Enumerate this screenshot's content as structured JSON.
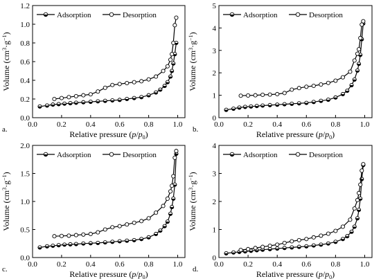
{
  "figure": {
    "xlabel_main": "Relative pressure (",
    "xlabel_p": "p",
    "xlabel_slash": "/",
    "xlabel_p0": "p",
    "xlabel_sub": "0",
    "xlabel_close": ")",
    "ylabel_main": "Volume (cm",
    "ylabel_sup3": "3",
    "ylabel_mid": "·g",
    "ylabel_supneg": "−1",
    "ylabel_close": ")"
  },
  "chart_data": [
    {
      "type": "line",
      "panel_label": "a.",
      "xlim": [
        0.0,
        1.05
      ],
      "ylim": [
        0.0,
        1.2
      ],
      "xticks": [
        0.0,
        0.2,
        0.4,
        0.6,
        0.8,
        1.0
      ],
      "xtick_labels": [
        "0.0",
        "0.2",
        "0.4",
        "0.6",
        "0.8",
        "1.0"
      ],
      "yticks": [
        0.0,
        0.2,
        0.4,
        0.6,
        0.8,
        1.0,
        1.2
      ],
      "ytick_labels": [
        "0.0",
        "0.2",
        "0.4",
        "0.6",
        "0.8",
        "1.0",
        "1.2"
      ],
      "legend_position": "top-left",
      "series": [
        {
          "name": "Adsorption",
          "marker": "half-filled-circle",
          "x": [
            0.05,
            0.1,
            0.14,
            0.18,
            0.22,
            0.26,
            0.3,
            0.35,
            0.4,
            0.45,
            0.5,
            0.55,
            0.6,
            0.65,
            0.7,
            0.75,
            0.8,
            0.85,
            0.88,
            0.91,
            0.93,
            0.95,
            0.96,
            0.97,
            0.98,
            0.99
          ],
          "y": [
            0.12,
            0.13,
            0.14,
            0.145,
            0.15,
            0.155,
            0.16,
            0.165,
            0.17,
            0.175,
            0.18,
            0.185,
            0.19,
            0.2,
            0.21,
            0.22,
            0.24,
            0.27,
            0.3,
            0.34,
            0.38,
            0.44,
            0.5,
            0.58,
            0.68,
            0.8
          ]
        },
        {
          "name": "Desorption",
          "marker": "open-circle",
          "x": [
            0.99,
            0.98,
            0.97,
            0.96,
            0.95,
            0.93,
            0.9,
            0.85,
            0.8,
            0.75,
            0.7,
            0.65,
            0.6,
            0.55,
            0.5,
            0.45,
            0.4,
            0.35,
            0.3,
            0.25,
            0.2,
            0.15
          ],
          "y": [
            1.07,
            0.99,
            0.8,
            0.68,
            0.62,
            0.55,
            0.5,
            0.44,
            0.41,
            0.39,
            0.38,
            0.37,
            0.36,
            0.35,
            0.32,
            0.28,
            0.25,
            0.24,
            0.23,
            0.22,
            0.21,
            0.2
          ]
        }
      ]
    },
    {
      "type": "line",
      "panel_label": "b.",
      "xlim": [
        0.0,
        1.05
      ],
      "ylim": [
        0,
        5
      ],
      "xticks": [
        0.0,
        0.2,
        0.4,
        0.6,
        0.8,
        1.0
      ],
      "xtick_labels": [
        "0.0",
        "0.2",
        "0.4",
        "0.6",
        "0.8",
        "1.0"
      ],
      "yticks": [
        0,
        1,
        2,
        3,
        4,
        5
      ],
      "ytick_labels": [
        "0",
        "1",
        "2",
        "3",
        "4",
        "5"
      ],
      "legend_position": "top-left",
      "series": [
        {
          "name": "Adsorption",
          "marker": "half-filled-circle",
          "x": [
            0.05,
            0.1,
            0.14,
            0.18,
            0.22,
            0.26,
            0.3,
            0.35,
            0.4,
            0.45,
            0.5,
            0.55,
            0.6,
            0.65,
            0.7,
            0.75,
            0.8,
            0.85,
            0.88,
            0.91,
            0.93,
            0.95,
            0.96,
            0.97,
            0.98,
            0.99
          ],
          "y": [
            0.35,
            0.4,
            0.45,
            0.48,
            0.5,
            0.52,
            0.54,
            0.56,
            0.58,
            0.6,
            0.62,
            0.64,
            0.66,
            0.7,
            0.75,
            0.8,
            0.9,
            1.05,
            1.2,
            1.45,
            1.7,
            2.1,
            2.4,
            2.8,
            3.5,
            4.2
          ]
        },
        {
          "name": "Desorption",
          "marker": "open-circle",
          "x": [
            0.99,
            0.98,
            0.97,
            0.96,
            0.95,
            0.93,
            0.9,
            0.85,
            0.8,
            0.75,
            0.7,
            0.65,
            0.6,
            0.55,
            0.5,
            0.45,
            0.4,
            0.35,
            0.3,
            0.25,
            0.2,
            0.15
          ],
          "y": [
            4.3,
            4.15,
            3.55,
            3.05,
            2.85,
            2.55,
            2.05,
            1.8,
            1.65,
            1.55,
            1.48,
            1.42,
            1.38,
            1.32,
            1.25,
            1.1,
            1.05,
            1.03,
            1.02,
            1.0,
            0.99,
            0.98
          ]
        }
      ]
    },
    {
      "type": "line",
      "panel_label": "c.",
      "xlim": [
        0.0,
        1.05
      ],
      "ylim": [
        0.0,
        2.0
      ],
      "xticks": [
        0.0,
        0.2,
        0.4,
        0.6,
        0.8,
        1.0
      ],
      "xtick_labels": [
        "0.0",
        "0.2",
        "0.4",
        "0.6",
        "0.8",
        "1.0"
      ],
      "yticks": [
        0.0,
        0.5,
        1.0,
        1.5,
        2.0
      ],
      "ytick_labels": [
        "0.0",
        "0.5",
        "1.0",
        "1.5",
        "2.0"
      ],
      "legend_position": "top-left",
      "series": [
        {
          "name": "Adsorption",
          "marker": "half-filled-circle",
          "x": [
            0.05,
            0.1,
            0.14,
            0.18,
            0.22,
            0.26,
            0.3,
            0.35,
            0.4,
            0.45,
            0.5,
            0.55,
            0.6,
            0.65,
            0.7,
            0.75,
            0.8,
            0.85,
            0.88,
            0.91,
            0.93,
            0.95,
            0.96,
            0.97,
            0.98,
            0.99
          ],
          "y": [
            0.18,
            0.2,
            0.21,
            0.22,
            0.23,
            0.235,
            0.24,
            0.25,
            0.255,
            0.26,
            0.27,
            0.28,
            0.29,
            0.3,
            0.31,
            0.33,
            0.36,
            0.42,
            0.48,
            0.56,
            0.64,
            0.78,
            0.9,
            1.05,
            1.3,
            1.85
          ]
        },
        {
          "name": "Desorption",
          "marker": "open-circle",
          "x": [
            0.99,
            0.98,
            0.97,
            0.96,
            0.95,
            0.93,
            0.9,
            0.85,
            0.8,
            0.75,
            0.7,
            0.65,
            0.6,
            0.55,
            0.5,
            0.45,
            0.4,
            0.35,
            0.3,
            0.25,
            0.2,
            0.15
          ],
          "y": [
            1.9,
            1.78,
            1.45,
            1.28,
            1.18,
            1.05,
            0.92,
            0.8,
            0.7,
            0.65,
            0.62,
            0.59,
            0.56,
            0.54,
            0.5,
            0.45,
            0.42,
            0.41,
            0.4,
            0.39,
            0.385,
            0.38
          ]
        }
      ]
    },
    {
      "type": "line",
      "panel_label": "d.",
      "xlim": [
        0.0,
        1.05
      ],
      "ylim": [
        0,
        4
      ],
      "xticks": [
        0.0,
        0.2,
        0.4,
        0.6,
        0.8,
        1.0
      ],
      "xtick_labels": [
        "0.0",
        "0.2",
        "0.4",
        "0.6",
        "0.8",
        "1.0"
      ],
      "yticks": [
        0,
        1,
        2,
        3,
        4
      ],
      "ytick_labels": [
        "0",
        "1",
        "2",
        "3",
        "4"
      ],
      "legend_position": "top-left",
      "series": [
        {
          "name": "Adsorption",
          "marker": "half-filled-circle",
          "x": [
            0.05,
            0.1,
            0.14,
            0.18,
            0.22,
            0.26,
            0.3,
            0.35,
            0.4,
            0.45,
            0.5,
            0.55,
            0.6,
            0.65,
            0.7,
            0.75,
            0.8,
            0.85,
            0.88,
            0.91,
            0.93,
            0.95,
            0.96,
            0.97,
            0.98,
            0.99
          ],
          "y": [
            0.15,
            0.18,
            0.2,
            0.22,
            0.24,
            0.26,
            0.28,
            0.3,
            0.32,
            0.34,
            0.36,
            0.38,
            0.4,
            0.43,
            0.46,
            0.5,
            0.56,
            0.66,
            0.76,
            0.92,
            1.1,
            1.4,
            1.7,
            2.1,
            2.8,
            3.3
          ]
        },
        {
          "name": "Desorption",
          "marker": "open-circle",
          "x": [
            0.99,
            0.98,
            0.97,
            0.96,
            0.95,
            0.93,
            0.9,
            0.85,
            0.8,
            0.75,
            0.7,
            0.65,
            0.6,
            0.55,
            0.5,
            0.45,
            0.4,
            0.35,
            0.3,
            0.25,
            0.2,
            0.15
          ],
          "y": [
            3.33,
            3.1,
            2.6,
            2.3,
            2.05,
            1.75,
            1.35,
            1.1,
            0.95,
            0.85,
            0.78,
            0.72,
            0.66,
            0.62,
            0.58,
            0.52,
            0.46,
            0.42,
            0.38,
            0.34,
            0.3,
            0.27
          ]
        }
      ]
    }
  ]
}
